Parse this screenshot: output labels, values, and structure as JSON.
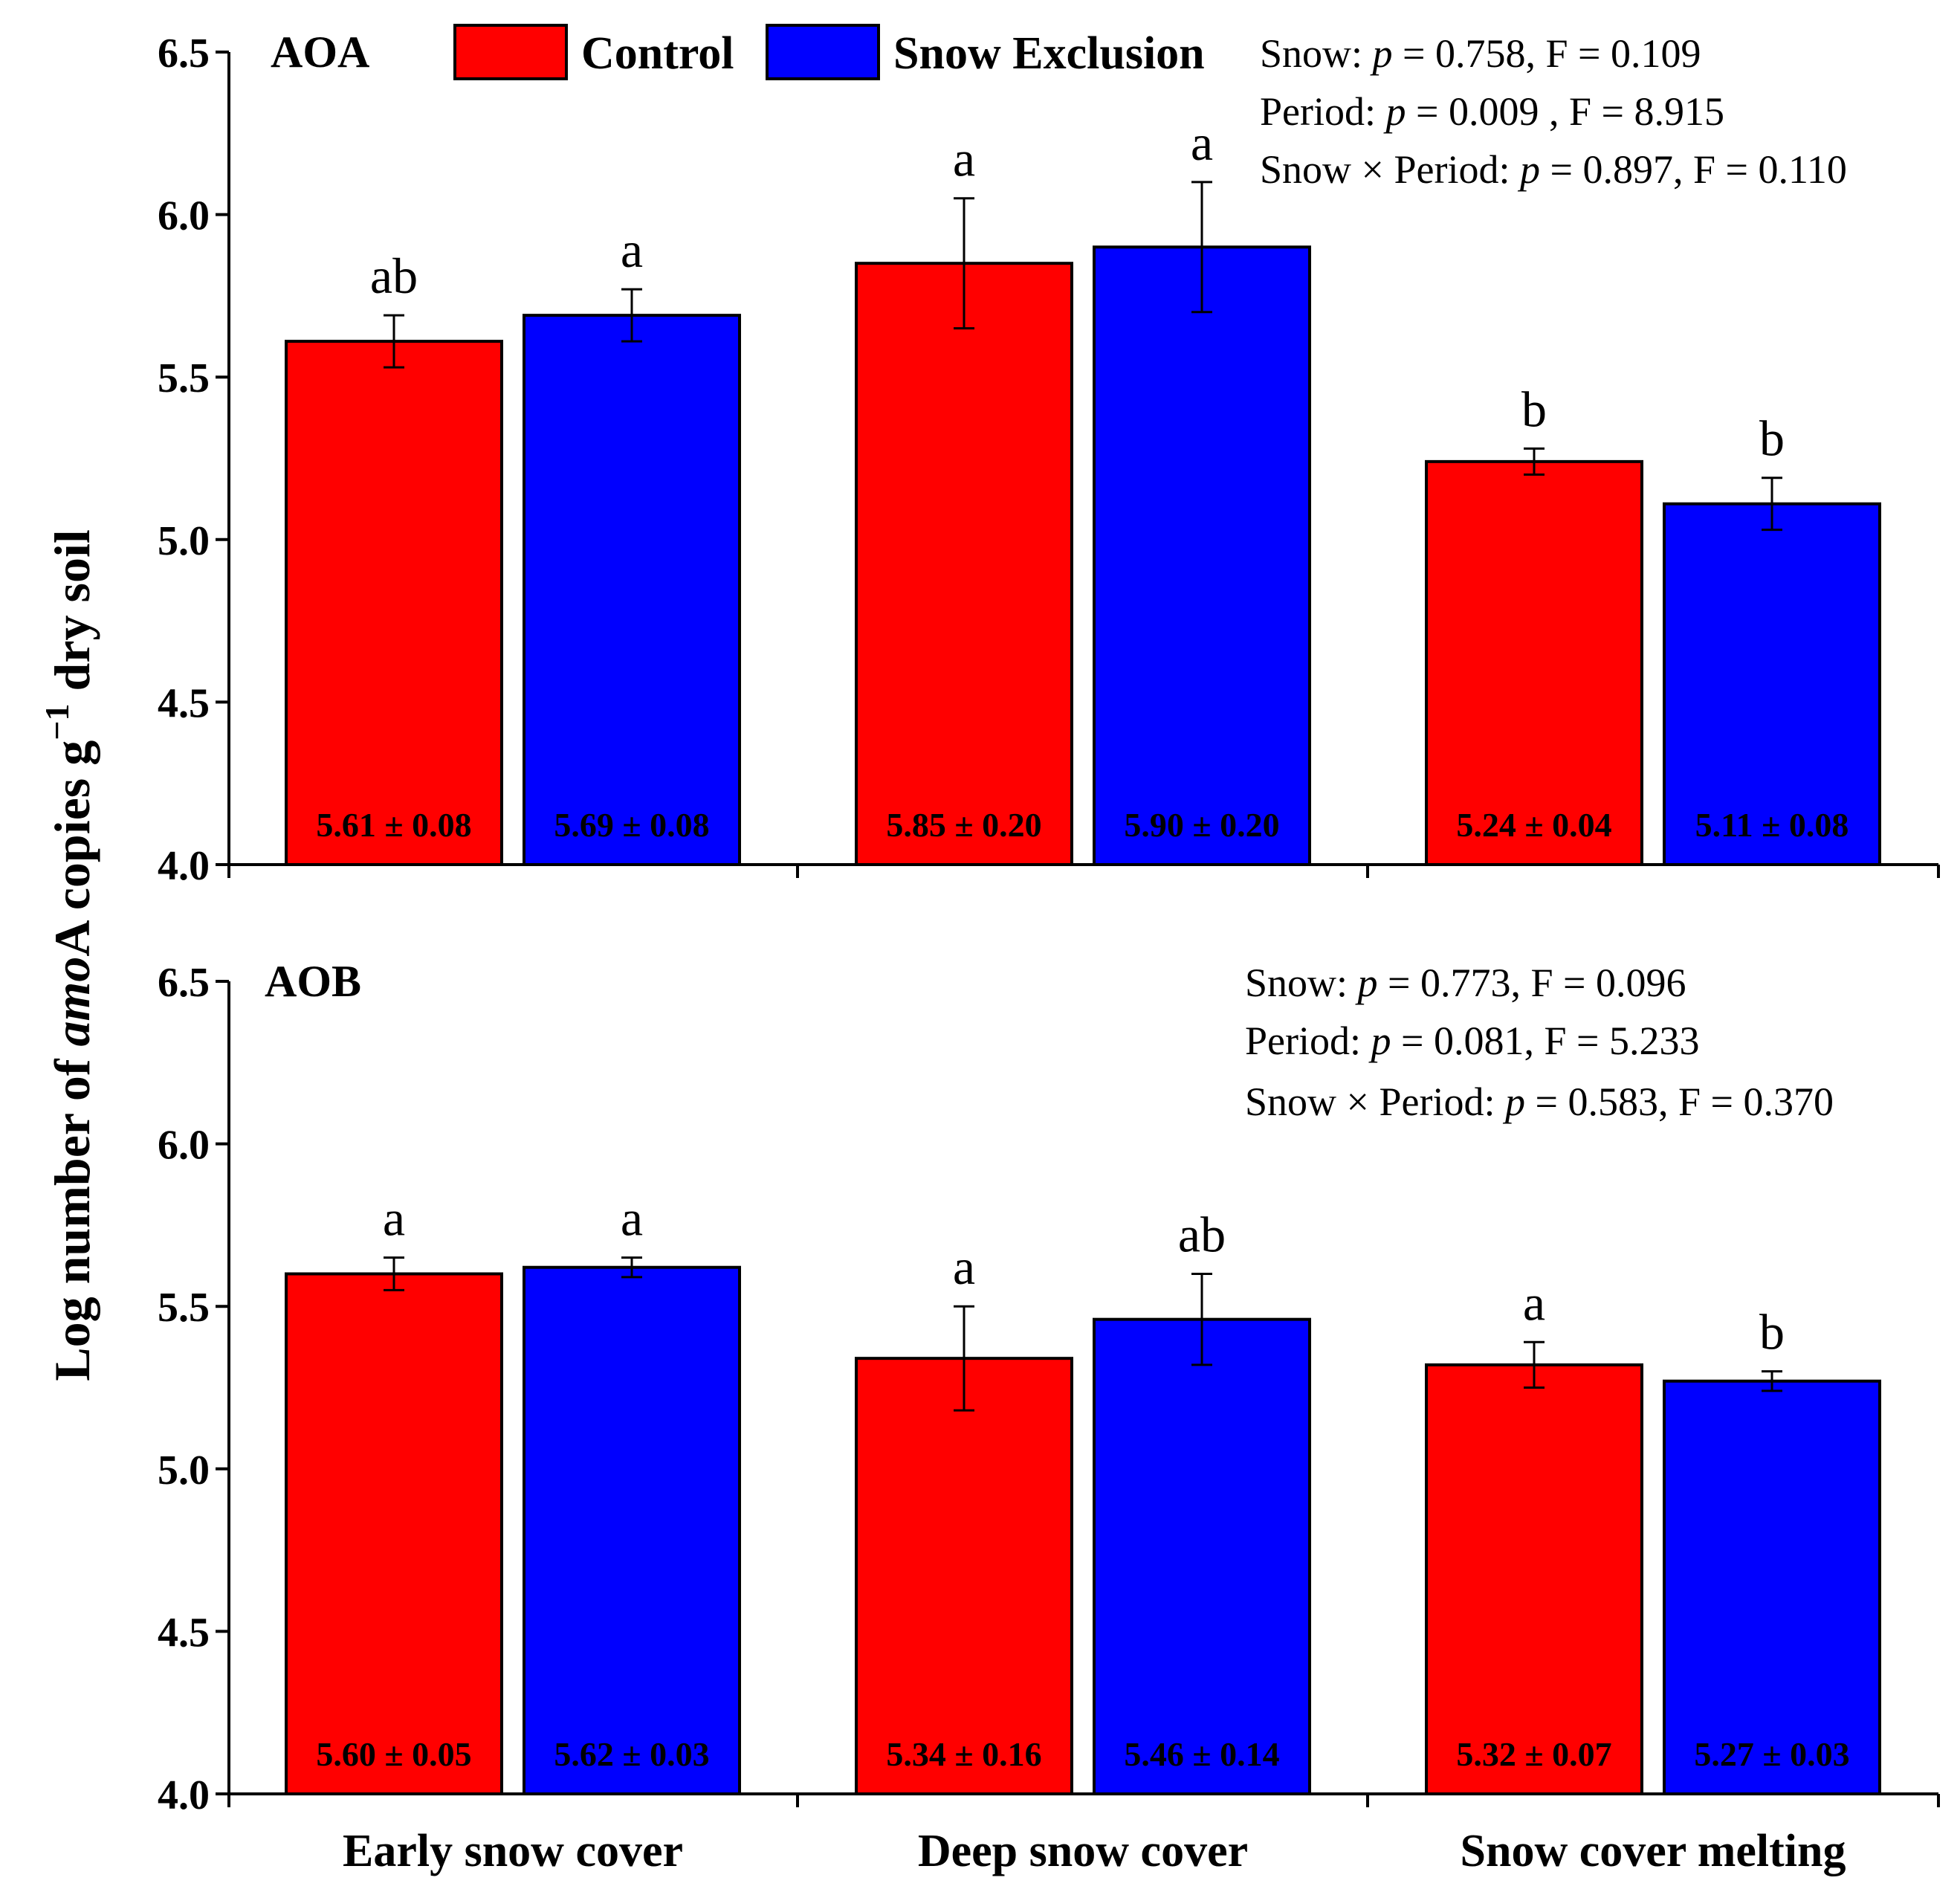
{
  "chart_data": [
    {
      "type": "bar",
      "title": "AOA",
      "categories": [
        "Early snow cover",
        "Deep snow cover",
        "Snow cover melting"
      ],
      "series": [
        {
          "name": "Control",
          "color": "#ff0000",
          "values": [
            5.61,
            5.85,
            5.24
          ],
          "errors": [
            0.08,
            0.2,
            0.04
          ],
          "letters": [
            "ab",
            "a",
            "b"
          ],
          "labels": [
            "5.61 ± 0.08",
            "5.85 ± 0.20",
            "5.24 ± 0.04"
          ]
        },
        {
          "name": "Snow Exclusion",
          "color": "#0000ff",
          "values": [
            5.69,
            5.9,
            5.11
          ],
          "errors": [
            0.08,
            0.2,
            0.08
          ],
          "letters": [
            "a",
            "a",
            "b"
          ],
          "labels": [
            "5.69 ± 0.08",
            "5.90 ± 0.20",
            "5.11 ± 0.08"
          ]
        }
      ],
      "stats": [
        {
          "label": "Snow: ",
          "p": "0.758",
          "f": "0.109",
          "sep": ", "
        },
        {
          "label": "Period: ",
          "p": "0.009",
          "f": "8.915",
          "sep": " , "
        },
        {
          "label": "Snow × Period: ",
          "p": "0.897",
          "f": "0.110",
          "sep": ", "
        }
      ],
      "ylim": [
        4.0,
        6.5
      ],
      "yticks": [
        "4.0",
        "4.5",
        "5.0",
        "5.5",
        "6.0",
        "6.5"
      ]
    },
    {
      "type": "bar",
      "title": "AOB",
      "categories": [
        "Early snow cover",
        "Deep snow cover",
        "Snow cover melting"
      ],
      "series": [
        {
          "name": "Control",
          "color": "#ff0000",
          "values": [
            5.6,
            5.34,
            5.32
          ],
          "errors": [
            0.05,
            0.16,
            0.07
          ],
          "letters": [
            "a",
            "a",
            "a"
          ],
          "labels": [
            "5.60 ± 0.05",
            "5.34 ± 0.16",
            "5.32 ± 0.07"
          ]
        },
        {
          "name": "Snow Exclusion",
          "color": "#0000ff",
          "values": [
            5.62,
            5.46,
            5.27
          ],
          "errors": [
            0.03,
            0.14,
            0.03
          ],
          "letters": [
            "a",
            "ab",
            "b"
          ],
          "labels": [
            "5.62 ± 0.03",
            "5.46 ± 0.14",
            "5.27 ± 0.03"
          ]
        }
      ],
      "stats": [
        {
          "label": "Snow: ",
          "p": "0.773",
          "f": "0.096",
          "sep": ", "
        },
        {
          "label": "Period: ",
          "p": "0.081",
          "f": "5.233",
          "sep": ", "
        },
        {
          "label": "Snow × Period:  ",
          "p": "0.583",
          "f": "0.370",
          "sep": ", "
        }
      ],
      "ylim": [
        4.0,
        6.5
      ],
      "yticks": [
        "4.0",
        "4.5",
        "5.0",
        "5.5",
        "6.0",
        "6.5"
      ]
    }
  ],
  "legend": {
    "control": "Control",
    "snow_exclusion": "Snow Exclusion",
    "control_color": "#ff0000",
    "snow_exclusion_color": "#0000ff"
  },
  "ylabel": {
    "prefix": "Log number of ",
    "gene": "amo",
    "gene_suffix": "A",
    "middle": " copies g",
    "superscript": "−1",
    "suffix": " dry soil"
  },
  "xlabels": [
    "Early snow cover",
    "Deep snow cover",
    "Snow cover melting"
  ],
  "stat_symbols": {
    "p": "p",
    "eq": " = ",
    "f": "F = "
  }
}
